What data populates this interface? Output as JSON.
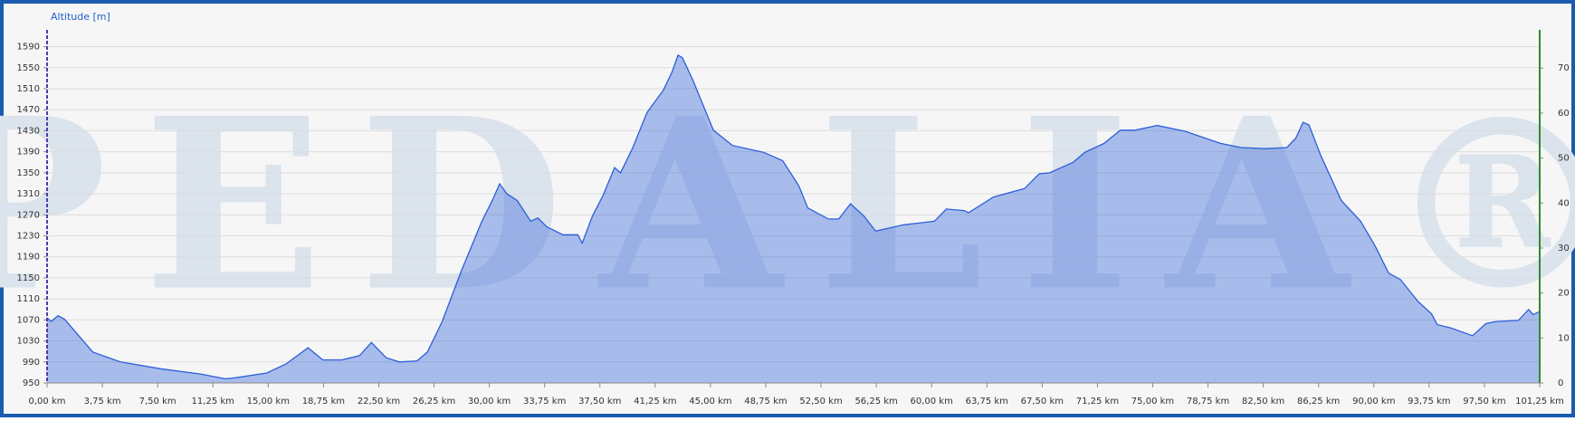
{
  "chart_data": {
    "type": "area",
    "y_label": "Altitude [m]",
    "watermark": "PEDALIA®",
    "x": [
      0,
      0.27,
      0.75,
      1.2,
      1.9,
      3.1,
      5.0,
      7.7,
      10.4,
      12.1,
      12.8,
      14.9,
      16.2,
      17.7,
      18.7,
      20.0,
      21.2,
      22.0,
      23.0,
      23.9,
      25.1,
      25.8,
      26.8,
      28.1,
      29.5,
      30.2,
      30.7,
      31.2,
      31.9,
      32.8,
      33.3,
      33.9,
      35.0,
      36.0,
      36.3,
      37.0,
      37.7,
      38.5,
      38.9,
      39.7,
      40.7,
      41.8,
      42.4,
      42.8,
      43.1,
      43.8,
      45.2,
      46.5,
      48.6,
      49.9,
      51.0,
      51.6,
      53.0,
      53.7,
      54.5,
      55.4,
      56.2,
      58.1,
      60.2,
      61.0,
      62.2,
      62.5,
      64.2,
      66.3,
      67.3,
      68.0,
      69.6,
      70.4,
      71.7,
      72.8,
      73.8,
      75.3,
      77.2,
      79.6,
      81.0,
      82.6,
      84.1,
      84.7,
      85.2,
      85.6,
      86.4,
      87.8,
      89.1,
      90.1,
      91.0,
      91.8,
      93.0,
      93.9,
      94.3,
      95.2,
      96.7,
      97.6,
      98.3,
      99.8,
      100.5,
      100.8,
      101.25
    ],
    "series": [
      {
        "color": "#2b5fd9",
        "values": [
          1074,
          1067,
          1078,
          1071,
          1048,
          1009,
          990,
          977,
          967,
          958,
          960,
          969,
          986,
          1017,
          994,
          994,
          1002,
          1027,
          998,
          990,
          992,
          1009,
          1067,
          1163,
          1258,
          1297,
          1329,
          1310,
          1297,
          1258,
          1264,
          1247,
          1232,
          1232,
          1216,
          1268,
          1306,
          1360,
          1350,
          1396,
          1465,
          1507,
          1542,
          1574,
          1569,
          1527,
          1431,
          1402,
          1389,
          1373,
          1325,
          1283,
          1262,
          1262,
          1291,
          1268,
          1239,
          1251,
          1258,
          1281,
          1278,
          1274,
          1304,
          1320,
          1348,
          1350,
          1370,
          1389,
          1406,
          1431,
          1431,
          1440,
          1429,
          1406,
          1398,
          1396,
          1398,
          1416,
          1446,
          1441,
          1383,
          1297,
          1258,
          1210,
          1159,
          1147,
          1105,
          1082,
          1061,
          1055,
          1040,
          1063,
          1067,
          1069,
          1090,
          1080,
          1086
        ]
      }
    ],
    "xlim": [
      0,
      101.25
    ],
    "xticks": [
      {
        "value": 0,
        "label": "0,00 km"
      },
      {
        "value": 3.75,
        "label": "3,75 km"
      },
      {
        "value": 7.5,
        "label": "7,50 km"
      },
      {
        "value": 11.25,
        "label": "11,25 km"
      },
      {
        "value": 15,
        "label": "15,00 km"
      },
      {
        "value": 18.75,
        "label": "18,75 km"
      },
      {
        "value": 22.5,
        "label": "22,50 km"
      },
      {
        "value": 26.25,
        "label": "26,25 km"
      },
      {
        "value": 30,
        "label": "30,00 km"
      },
      {
        "value": 33.75,
        "label": "33,75 km"
      },
      {
        "value": 37.5,
        "label": "37,50 km"
      },
      {
        "value": 41.25,
        "label": "41,25 km"
      },
      {
        "value": 45,
        "label": "45,00 km"
      },
      {
        "value": 48.75,
        "label": "48,75 km"
      },
      {
        "value": 52.5,
        "label": "52,50 km"
      },
      {
        "value": 56.25,
        "label": "56,25 km"
      },
      {
        "value": 60,
        "label": "60,00 km"
      },
      {
        "value": 63.75,
        "label": "63,75 km"
      },
      {
        "value": 67.5,
        "label": "67,50 km"
      },
      {
        "value": 71.25,
        "label": "71,25 km"
      },
      {
        "value": 75,
        "label": "75,00 km"
      },
      {
        "value": 78.75,
        "label": "78,75 km"
      },
      {
        "value": 82.5,
        "label": "82,50 km"
      },
      {
        "value": 86.25,
        "label": "86,25 km"
      },
      {
        "value": 90,
        "label": "90,00 km"
      },
      {
        "value": 93.75,
        "label": "93,75 km"
      },
      {
        "value": 97.5,
        "label": "97,50 km"
      },
      {
        "value": 101.25,
        "label": "101,25 km"
      }
    ],
    "ylim": [
      950,
      1622
    ],
    "yticks": [
      950,
      990,
      1030,
      1070,
      1110,
      1150,
      1190,
      1230,
      1270,
      1310,
      1350,
      1390,
      1430,
      1470,
      1510,
      1550,
      1590
    ],
    "y2lim": [
      0,
      78.5
    ],
    "y2ticks": [
      0,
      10,
      20,
      30,
      40,
      50,
      60,
      70
    ],
    "grid": true
  }
}
